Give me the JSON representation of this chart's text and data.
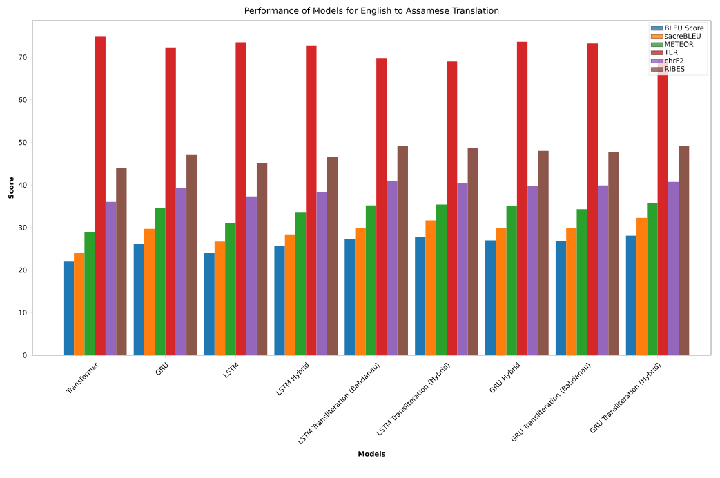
{
  "chart_data": {
    "type": "bar",
    "title": "Performance of Models for English to Assamese Translation",
    "xlabel": "Models",
    "ylabel": "Score",
    "categories": [
      "Transformer",
      "GRU",
      "LSTM",
      "LSTM Hybrid",
      "LSTM Transliteration (Bahdanau)",
      "LSTM Transliteration (Hybrid)",
      "GRU Hybrid",
      "GRU Transliteration (Bahdanau)",
      "GRU Transliteration (Hybrid)"
    ],
    "series": [
      {
        "name": "BLEU Score",
        "color": "#1f77b4",
        "values": [
          22,
          26.1,
          24,
          25.6,
          27.4,
          27.8,
          27,
          26.9,
          28.1
        ]
      },
      {
        "name": "sacreBLEU",
        "color": "#ff7f0e",
        "values": [
          24,
          29.7,
          26.7,
          28.4,
          30,
          31.7,
          30,
          29.9,
          32.3
        ]
      },
      {
        "name": "METEOR",
        "color": "#2ca02c",
        "values": [
          29,
          34.5,
          31.1,
          33.5,
          35.2,
          35.4,
          35,
          34.3,
          35.7
        ]
      },
      {
        "name": "TER",
        "color": "#d62728",
        "values": [
          75,
          72.3,
          73.5,
          72.8,
          69.8,
          69,
          73.6,
          73.2,
          69.6
        ]
      },
      {
        "name": "chrF2",
        "color": "#9467bd",
        "values": [
          36,
          39.2,
          37.3,
          38.3,
          41,
          40.5,
          39.8,
          39.9,
          40.7
        ]
      },
      {
        "name": "RIBES",
        "color": "#8c564b",
        "values": [
          44,
          47.2,
          45.2,
          46.6,
          49.1,
          48.7,
          48,
          47.8,
          49.2
        ]
      }
    ],
    "ylim": [
      0,
      78.6
    ],
    "yticks": [
      0,
      10,
      20,
      30,
      40,
      50,
      60,
      70
    ],
    "grid": false,
    "legend": "top right"
  }
}
